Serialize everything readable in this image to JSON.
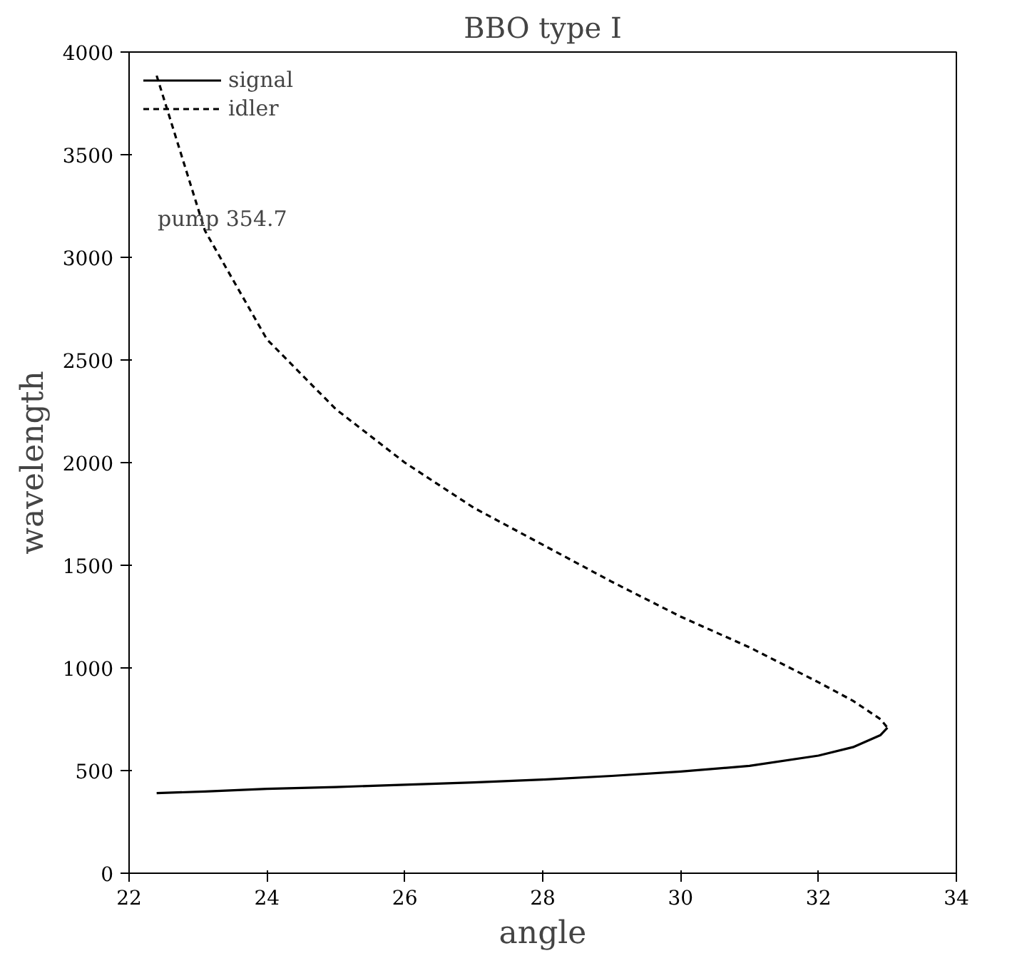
{
  "chart_data": {
    "type": "line",
    "title": "BBO type I",
    "xlabel": "angle",
    "ylabel": "wavelength",
    "xlim": [
      22,
      34
    ],
    "ylim": [
      0,
      4000
    ],
    "xticks": [
      22,
      24,
      26,
      28,
      30,
      32,
      34
    ],
    "yticks": [
      0,
      500,
      1000,
      1500,
      2000,
      2500,
      3000,
      3500,
      4000
    ],
    "grid": false,
    "legend": "top left",
    "marker": "none",
    "annotations": [
      "pump 354.7"
    ],
    "series": [
      {
        "name": "signal",
        "color": "#000000",
        "line_style": "solid",
        "x": [
          22.4,
          23.1,
          24,
          25,
          26,
          27,
          28,
          29,
          30,
          31,
          32,
          32.5,
          32.9,
          33.0
        ],
        "values": [
          390,
          398,
          411,
          420,
          431,
          442,
          456,
          474,
          495,
          523,
          573,
          614,
          673,
          709
        ]
      },
      {
        "name": "idler",
        "color": "#000000",
        "line_style": "dashed",
        "x": [
          22.4,
          23.1,
          24,
          25,
          26,
          27,
          28,
          29,
          30,
          31,
          32,
          32.5,
          32.9,
          33.0
        ],
        "values": [
          3885,
          3130,
          2600,
          2260,
          2000,
          1780,
          1600,
          1420,
          1250,
          1100,
          930,
          840,
          750,
          709
        ]
      }
    ]
  }
}
